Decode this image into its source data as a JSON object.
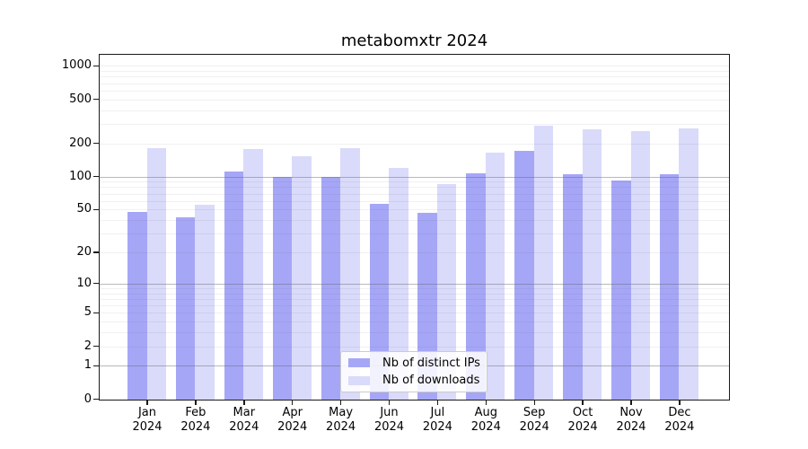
{
  "chart_data": {
    "type": "bar",
    "title": "metabomxtr 2024",
    "categories": [
      "Jan",
      "Feb",
      "Mar",
      "Apr",
      "May",
      "Jun",
      "Jul",
      "Aug",
      "Sep",
      "Oct",
      "Nov",
      "Dec"
    ],
    "x_year_line": "2024",
    "series": [
      {
        "name": "Nb of distinct IPs",
        "color": "#a6a6f7",
        "values": [
          48,
          43,
          112,
          100,
          101,
          57,
          47,
          109,
          172,
          107,
          93,
          106
        ]
      },
      {
        "name": "Nb of downloads",
        "color": "#dadafa",
        "values": [
          183,
          56,
          180,
          153,
          181,
          122,
          86,
          165,
          293,
          271,
          259,
          276
        ]
      }
    ],
    "y_scale": "log10(1+x)",
    "y_tick_labels": [
      0,
      1,
      2,
      5,
      10,
      20,
      50,
      100,
      200,
      500,
      1000
    ],
    "ylim": [
      0,
      1300
    ],
    "grid": "horizontal, minor lines at 2-9 per decade, decade lines darker",
    "legend_position": "bottom-center"
  },
  "colors": {
    "bar_dark": "#a6a6f7",
    "bar_light": "#dadafa",
    "grid_minor": "rgba(60,60,80,0.08)",
    "grid_decade": "rgba(100,100,110,0.45)",
    "spine": "#1a1a1a",
    "background": "#ffffff"
  }
}
